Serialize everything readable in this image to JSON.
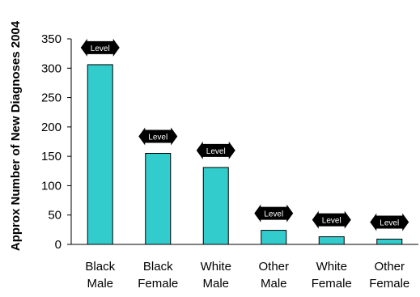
{
  "chart_data": {
    "type": "bar",
    "title": "",
    "xlabel": "",
    "ylabel": "Approx Number of New Diagnoses 2004",
    "ylim": [
      0,
      350
    ],
    "yticks": [
      0,
      50,
      100,
      150,
      200,
      250,
      300,
      350
    ],
    "categories": [
      [
        "Black",
        "Male"
      ],
      [
        "Black",
        "Female"
      ],
      [
        "White",
        "Male"
      ],
      [
        "Other",
        "Male"
      ],
      [
        "White",
        "Female"
      ],
      [
        "Other",
        "Female"
      ]
    ],
    "values": [
      306,
      155,
      131,
      24,
      13,
      9
    ],
    "annotation_label": "Level",
    "bar_color": "#33CCCC",
    "bar_stroke": "#000000",
    "badge_color": "#000000",
    "grid": false,
    "legend": "none"
  }
}
